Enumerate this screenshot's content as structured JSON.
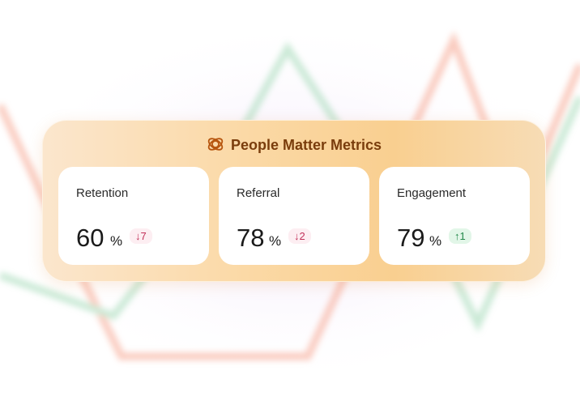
{
  "header": {
    "title": "People Matter Metrics"
  },
  "cards": [
    {
      "label": "Retention",
      "value": "60",
      "unit": "%",
      "change": "↓7"
    },
    {
      "label": "Referral",
      "value": "78",
      "unit": "%",
      "change": "↓2"
    },
    {
      "label": "Engagement",
      "value": "79",
      "unit": "%",
      "change": "↑1"
    }
  ]
}
